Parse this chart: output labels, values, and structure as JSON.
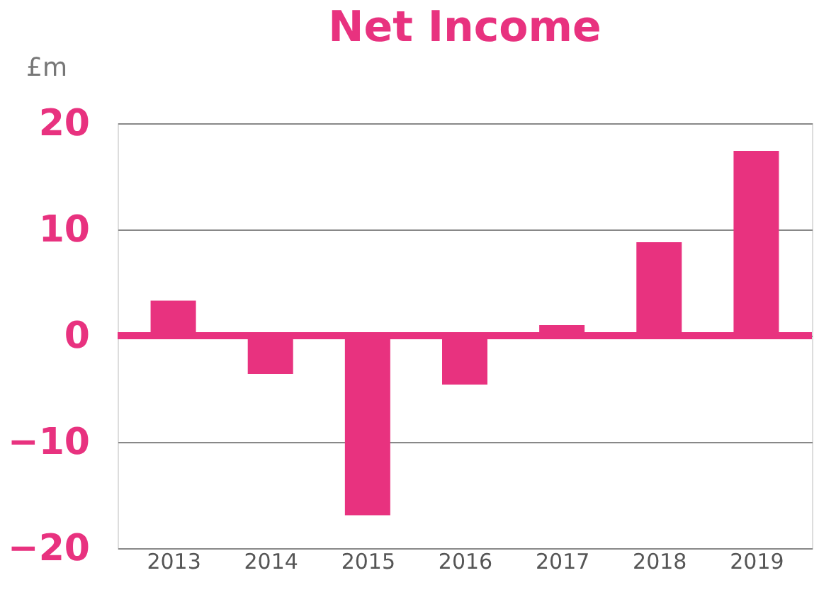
{
  "chart_data": {
    "type": "bar",
    "title": "Net Income",
    "ylabel": "£m",
    "categories": [
      "2013",
      "2014",
      "2015",
      "2016",
      "2017",
      "2018",
      "2019"
    ],
    "values": [
      3.3,
      -3.6,
      -16.9,
      -4.6,
      1,
      8.8,
      17.4
    ],
    "color": "#e8327f",
    "ylim": [
      -20,
      20
    ],
    "yticks": [
      -20,
      -10,
      0,
      10,
      20
    ],
    "grid": "y",
    "ref_lines": [
      {
        "axis": "y",
        "value": 0,
        "color": "#e8327f"
      }
    ]
  }
}
